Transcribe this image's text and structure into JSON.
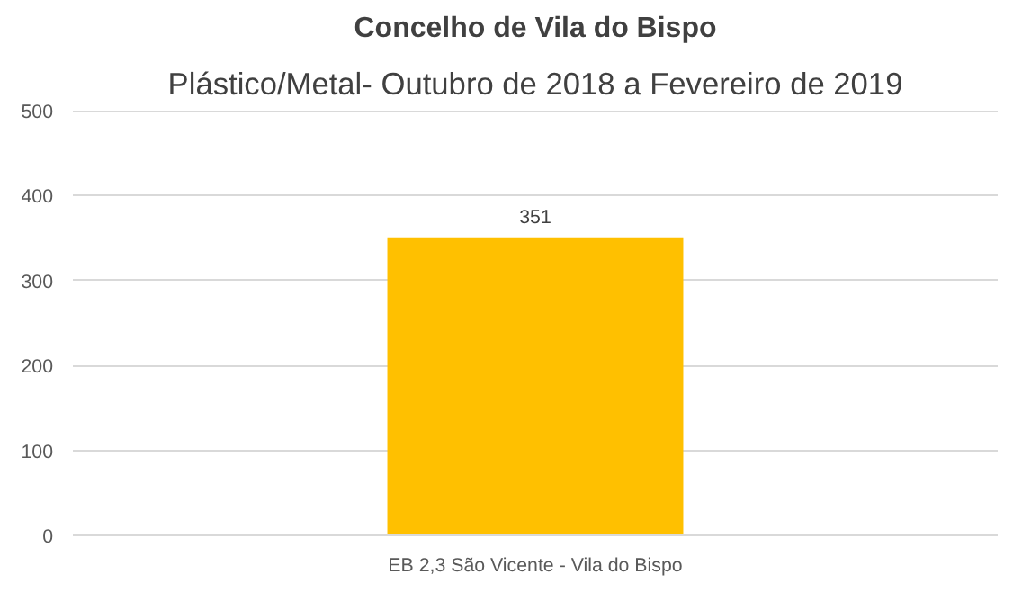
{
  "chart_data": {
    "type": "bar",
    "title": "Concelho de Vila do Bispo",
    "subtitle": "Plástico/Metal- Outubro de 2018 a Fevereiro de 2019",
    "categories": [
      "EB 2,3 São Vicente - Vila do Bispo"
    ],
    "values": [
      351
    ],
    "color": "#ffc000",
    "ylim": [
      0,
      500
    ],
    "yticks": [
      0,
      100,
      200,
      300,
      400,
      500
    ],
    "grid": "y",
    "data_labels": true
  }
}
